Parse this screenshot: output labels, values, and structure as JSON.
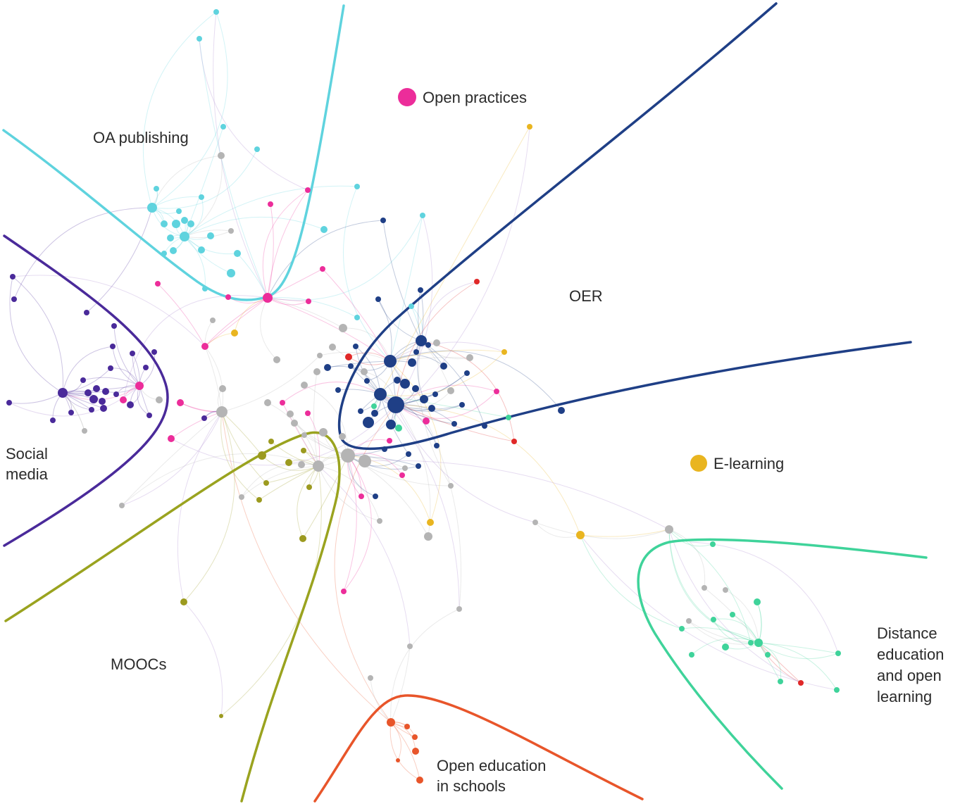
{
  "clusters": {
    "oa_publishing": {
      "label": "OA publishing",
      "color": "#5fd3de"
    },
    "open_practices": {
      "label": "Open practices",
      "color": "#ec2d9a"
    },
    "oer": {
      "label": "OER",
      "color": "#1f3f86"
    },
    "social_media": {
      "label_lines": [
        "Social",
        "media"
      ],
      "color": "#4a2a9a"
    },
    "e_learning": {
      "label": "E-learning",
      "color": "#e9b520"
    },
    "moocs": {
      "label": "MOOCs",
      "color": "#9c9a1f"
    },
    "distance": {
      "label_lines": [
        "Distance",
        "education",
        "and open",
        "learning"
      ],
      "color": "#3fd39a"
    },
    "schools": {
      "label_lines": [
        "Open education",
        "in schools"
      ],
      "color": "#e8552a"
    }
  },
  "colors": {
    "unclassified": "#b4b4b4",
    "red": "#e02828",
    "oa_line": "#5fd3de",
    "oer_line": "#1f3f86",
    "social_line": "#4a2a9a",
    "moocs_line": "#9aa31f",
    "distance_line": "#3fd39a",
    "schools_line": "#e8552a"
  }
}
